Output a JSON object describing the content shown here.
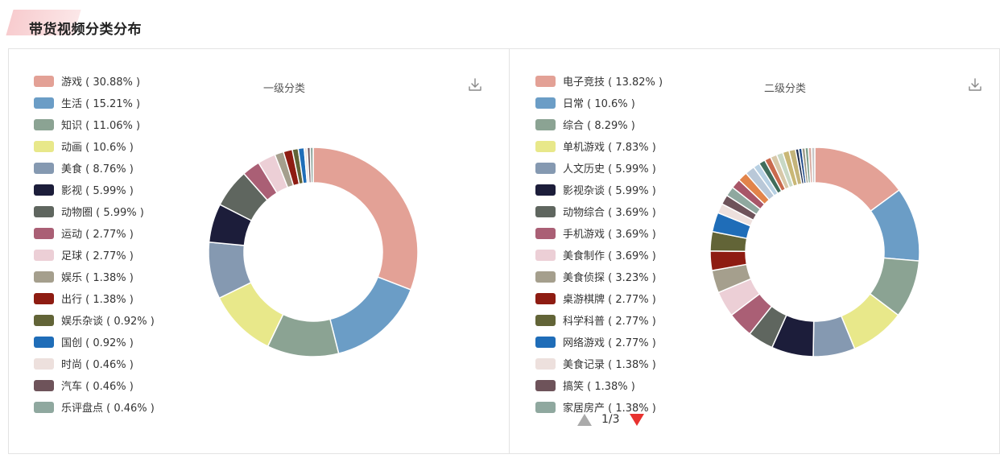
{
  "page": {
    "title": "带货视频分类分布"
  },
  "icons": {
    "download": "download-icon",
    "pager_prev": "triangle-up-icon",
    "pager_next": "triangle-down-icon"
  },
  "pager": {
    "text": "1/3",
    "prev_color": "#aaaaaa",
    "next_color": "#e8322f"
  },
  "chart_data": [
    {
      "type": "pie",
      "donut": true,
      "title": "一级分类",
      "legend_placement": "left",
      "series": [
        {
          "name": "游戏",
          "value": 30.88,
          "color": "#e3a196",
          "legend": "游戏 ( 30.88% )"
        },
        {
          "name": "生活",
          "value": 15.21,
          "color": "#6b9dc6",
          "legend": "生活 ( 15.21% )"
        },
        {
          "name": "知识",
          "value": 11.06,
          "color": "#8ba393",
          "legend": "知识 ( 11.06% )"
        },
        {
          "name": "动画",
          "value": 10.6,
          "color": "#e8e88a",
          "legend": "动画 ( 10.6% )"
        },
        {
          "name": "美食",
          "value": 8.76,
          "color": "#8599b1",
          "legend": "美食 ( 8.76% )"
        },
        {
          "name": "影视",
          "value": 5.99,
          "color": "#1c1d3a",
          "legend": "影视 ( 5.99% )"
        },
        {
          "name": "动物圈",
          "value": 5.99,
          "color": "#5f665f",
          "legend": "动物圈 ( 5.99% )"
        },
        {
          "name": "运动",
          "value": 2.77,
          "color": "#aa5f75",
          "legend": "运动 ( 2.77% )"
        },
        {
          "name": "足球",
          "value": 2.77,
          "color": "#eccfd6",
          "legend": "足球 ( 2.77% )"
        },
        {
          "name": "娱乐",
          "value": 1.38,
          "color": "#a59f8d",
          "legend": "娱乐 ( 1.38% )"
        },
        {
          "name": "出行",
          "value": 1.38,
          "color": "#8e1c12",
          "legend": "出行 ( 1.38% )"
        },
        {
          "name": "娱乐杂谈",
          "value": 0.92,
          "color": "#626437",
          "legend": "娱乐杂谈 ( 0.92% )"
        },
        {
          "name": "国创",
          "value": 0.92,
          "color": "#1f6db8",
          "legend": "国创 ( 0.92% )"
        },
        {
          "name": "时尚",
          "value": 0.46,
          "color": "#ede0dd",
          "legend": "时尚 ( 0.46% )"
        },
        {
          "name": "汽车",
          "value": 0.46,
          "color": "#6e535a",
          "legend": "汽车 ( 0.46% )"
        },
        {
          "name": "乐评盘点",
          "value": 0.46,
          "color": "#8fa89f",
          "legend": "乐评盘点 ( 0.46% )"
        }
      ]
    },
    {
      "type": "pie",
      "donut": true,
      "title": "二级分类",
      "legend_placement": "left",
      "series": [
        {
          "name": "电子竞技",
          "value": 13.82,
          "color": "#e3a196",
          "legend": "电子竞技 ( 13.82% )"
        },
        {
          "name": "日常",
          "value": 10.6,
          "color": "#6b9dc6",
          "legend": "日常 ( 10.6% )"
        },
        {
          "name": "综合",
          "value": 8.29,
          "color": "#8ba393",
          "legend": "综合 ( 8.29% )"
        },
        {
          "name": "单机游戏",
          "value": 7.83,
          "color": "#e8e88a",
          "legend": "单机游戏 ( 7.83% )"
        },
        {
          "name": "人文历史",
          "value": 5.99,
          "color": "#8599b1",
          "legend": "人文历史 ( 5.99% )"
        },
        {
          "name": "影视杂谈",
          "value": 5.99,
          "color": "#1c1d3a",
          "legend": "影视杂谈 ( 5.99% )"
        },
        {
          "name": "动物综合",
          "value": 3.69,
          "color": "#5f665f",
          "legend": "动物综合 ( 3.69% )"
        },
        {
          "name": "手机游戏",
          "value": 3.69,
          "color": "#aa5f75",
          "legend": "手机游戏 ( 3.69% )"
        },
        {
          "name": "美食制作",
          "value": 3.69,
          "color": "#eccfd6",
          "legend": "美食制作 ( 3.69% )"
        },
        {
          "name": "美食侦探",
          "value": 3.23,
          "color": "#a59f8d",
          "legend": "美食侦探 ( 3.23% )"
        },
        {
          "name": "桌游棋牌",
          "value": 2.77,
          "color": "#8e1c12",
          "legend": "桌游棋牌 ( 2.77% )"
        },
        {
          "name": "科学科普",
          "value": 2.77,
          "color": "#626437",
          "legend": "科学科普 ( 2.77% )"
        },
        {
          "name": "网络游戏",
          "value": 2.77,
          "color": "#1f6db8",
          "legend": "网络游戏 ( 2.77% )"
        },
        {
          "name": "美食记录",
          "value": 1.38,
          "color": "#ede0dd",
          "legend": "美食记录 ( 1.38% )"
        },
        {
          "name": "搞笑",
          "value": 1.38,
          "color": "#6e535a",
          "legend": "搞笑 ( 1.38% )"
        },
        {
          "name": "家居房产",
          "value": 1.38,
          "color": "#8fa89f",
          "legend": "家居房产 ( 1.38% )"
        }
      ],
      "other_slices": [
        {
          "value": 1.38,
          "color": "#a85668"
        },
        {
          "value": 1.38,
          "color": "#e2844a"
        },
        {
          "value": 1.38,
          "color": "#b9c8d8"
        },
        {
          "value": 0.92,
          "color": "#b7d0e3"
        },
        {
          "value": 0.92,
          "color": "#406d5c"
        },
        {
          "value": 0.92,
          "color": "#c96a4e"
        },
        {
          "value": 0.92,
          "color": "#d8c8a8"
        },
        {
          "value": 0.92,
          "color": "#c8d8c4"
        },
        {
          "value": 0.92,
          "color": "#c9b775"
        },
        {
          "value": 0.92,
          "color": "#c4b47a"
        },
        {
          "value": 0.46,
          "color": "#22304f"
        },
        {
          "value": 0.46,
          "color": "#1e4a8a"
        },
        {
          "value": 0.46,
          "color": "#9c9a86"
        },
        {
          "value": 0.46,
          "color": "#7a9e8a"
        },
        {
          "value": 0.46,
          "color": "#d6a99e"
        },
        {
          "value": 0.46,
          "color": "#c8c8c8"
        }
      ]
    }
  ]
}
